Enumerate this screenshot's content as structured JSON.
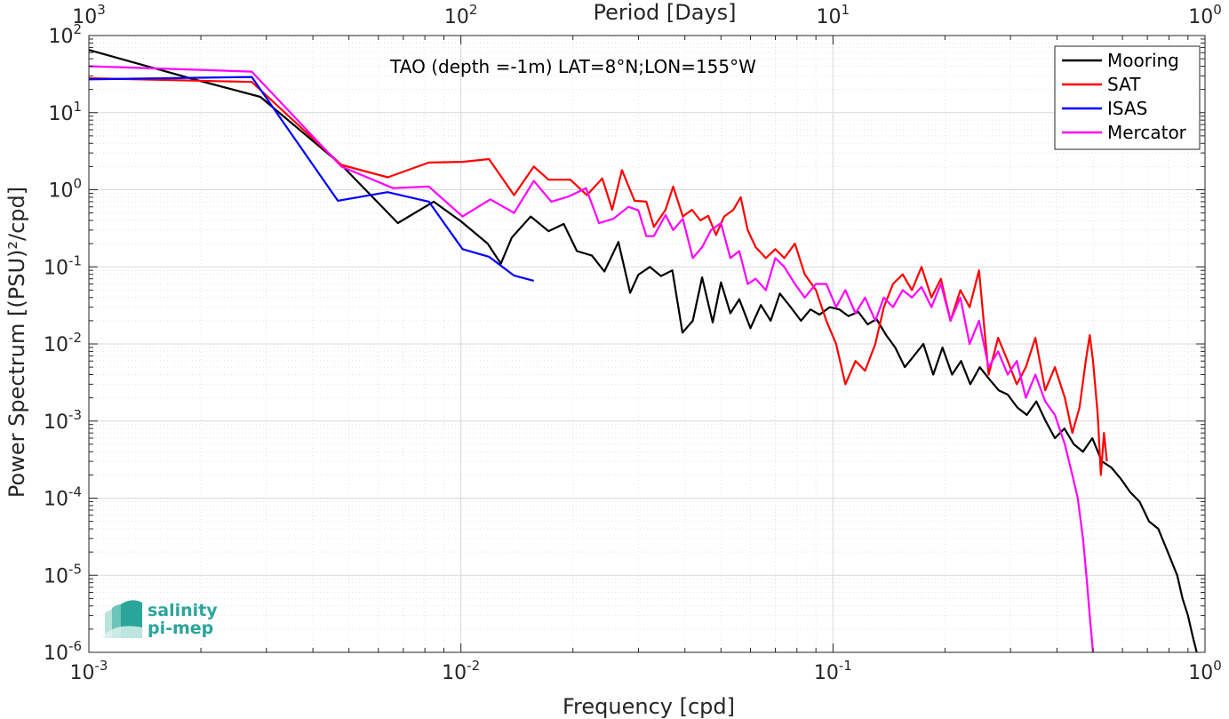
{
  "chart_data": {
    "type": "line",
    "title": "TAO (depth =-1m) LAT=8°N;LON=155°W",
    "xlabel": "Frequency [cpd]",
    "ylabel": "Power Spectrum [(PSU)²/cpd]",
    "top_xlabel": "Period [Days]",
    "xscale": "log",
    "yscale": "log",
    "xlim": [
      0.001,
      1
    ],
    "ylim": [
      1e-06,
      100
    ],
    "grid": true,
    "legend_position": "top-right",
    "x_ticks": [
      {
        "value": 0.001,
        "base": "10",
        "exp": "-3"
      },
      {
        "value": 0.01,
        "base": "10",
        "exp": "-2"
      },
      {
        "value": 0.1,
        "base": "10",
        "exp": "-1"
      },
      {
        "value": 1,
        "base": "10",
        "exp": "0"
      }
    ],
    "top_ticks": [
      {
        "value": 0.001,
        "base": "10",
        "exp": "3"
      },
      {
        "value": 0.01,
        "base": "10",
        "exp": "2"
      },
      {
        "value": 0.1,
        "base": "10",
        "exp": "1"
      },
      {
        "value": 1,
        "base": "10",
        "exp": "0"
      }
    ],
    "y_ticks": [
      {
        "value": 100,
        "base": "10",
        "exp": "2"
      },
      {
        "value": 10,
        "base": "10",
        "exp": "1"
      },
      {
        "value": 1,
        "base": "10",
        "exp": "0"
      },
      {
        "value": 0.1,
        "base": "10",
        "exp": "-1"
      },
      {
        "value": 0.01,
        "base": "10",
        "exp": "-2"
      },
      {
        "value": 0.001,
        "base": "10",
        "exp": "-3"
      },
      {
        "value": 0.0001,
        "base": "10",
        "exp": "-4"
      },
      {
        "value": 1e-05,
        "base": "10",
        "exp": "-5"
      },
      {
        "value": 1e-06,
        "base": "10",
        "exp": "-6"
      }
    ],
    "series": [
      {
        "name": "Mooring",
        "color": "#000000",
        "points": [
          [
            0.001,
            65
          ],
          [
            0.00192,
            27
          ],
          [
            0.00289,
            16
          ],
          [
            0.00477,
            2.1
          ],
          [
            0.00677,
            0.37
          ],
          [
            0.00845,
            0.7
          ],
          [
            0.01,
            0.39
          ],
          [
            0.0118,
            0.2
          ],
          [
            0.0128,
            0.11
          ],
          [
            0.0137,
            0.24
          ],
          [
            0.0154,
            0.45
          ],
          [
            0.0172,
            0.29
          ],
          [
            0.0189,
            0.36
          ],
          [
            0.0205,
            0.16
          ],
          [
            0.0225,
            0.14
          ],
          [
            0.0243,
            0.087
          ],
          [
            0.0265,
            0.21
          ],
          [
            0.0285,
            0.046
          ],
          [
            0.03,
            0.079
          ],
          [
            0.0322,
            0.1
          ],
          [
            0.0345,
            0.076
          ],
          [
            0.037,
            0.09
          ],
          [
            0.0394,
            0.014
          ],
          [
            0.042,
            0.02
          ],
          [
            0.0445,
            0.073
          ],
          [
            0.0475,
            0.019
          ],
          [
            0.05,
            0.063
          ],
          [
            0.053,
            0.025
          ],
          [
            0.056,
            0.038
          ],
          [
            0.06,
            0.016
          ],
          [
            0.064,
            0.032
          ],
          [
            0.068,
            0.02
          ],
          [
            0.072,
            0.045
          ],
          [
            0.077,
            0.03
          ],
          [
            0.082,
            0.02
          ],
          [
            0.087,
            0.028
          ],
          [
            0.092,
            0.024
          ],
          [
            0.098,
            0.03
          ],
          [
            0.104,
            0.028
          ],
          [
            0.11,
            0.023
          ],
          [
            0.117,
            0.026
          ],
          [
            0.124,
            0.018
          ],
          [
            0.131,
            0.021
          ],
          [
            0.139,
            0.013
          ],
          [
            0.147,
            0.009
          ],
          [
            0.156,
            0.005
          ],
          [
            0.165,
            0.007
          ],
          [
            0.175,
            0.01
          ],
          [
            0.186,
            0.004
          ],
          [
            0.197,
            0.009
          ],
          [
            0.209,
            0.004
          ],
          [
            0.221,
            0.006
          ],
          [
            0.234,
            0.003
          ],
          [
            0.248,
            0.005
          ],
          [
            0.263,
            0.0035
          ],
          [
            0.279,
            0.0025
          ],
          [
            0.295,
            0.0022
          ],
          [
            0.313,
            0.0015
          ],
          [
            0.332,
            0.0012
          ],
          [
            0.352,
            0.0018
          ],
          [
            0.373,
            0.001
          ],
          [
            0.395,
            0.0006
          ],
          [
            0.419,
            0.0008
          ],
          [
            0.444,
            0.0005
          ],
          [
            0.47,
            0.0004
          ],
          [
            0.498,
            0.0006
          ],
          [
            0.528,
            0.0003
          ],
          [
            0.56,
            0.00025
          ],
          [
            0.593,
            0.00018
          ],
          [
            0.629,
            0.00012
          ],
          [
            0.667,
            9e-05
          ],
          [
            0.707,
            5e-05
          ],
          [
            0.749,
            4e-05
          ],
          [
            0.794,
            2e-05
          ],
          [
            0.842,
            1e-05
          ],
          [
            0.87,
            5e-06
          ],
          [
            0.9,
            3e-06
          ],
          [
            0.93,
            1.5e-06
          ],
          [
            0.95,
            1e-06
          ]
        ]
      },
      {
        "name": "SAT",
        "color": "#ff0000",
        "points": [
          [
            0.001,
            28
          ],
          [
            0.00274,
            25
          ],
          [
            0.00477,
            2.1
          ],
          [
            0.00636,
            1.45
          ],
          [
            0.0082,
            2.25
          ],
          [
            0.0101,
            2.3
          ],
          [
            0.0119,
            2.5
          ],
          [
            0.0139,
            0.85
          ],
          [
            0.0157,
            2.0
          ],
          [
            0.0172,
            1.35
          ],
          [
            0.0197,
            1.35
          ],
          [
            0.0218,
            0.85
          ],
          [
            0.024,
            1.4
          ],
          [
            0.0255,
            0.55
          ],
          [
            0.0271,
            1.8
          ],
          [
            0.0293,
            0.72
          ],
          [
            0.0315,
            0.7
          ],
          [
            0.033,
            0.33
          ],
          [
            0.0355,
            0.55
          ],
          [
            0.0372,
            1.1
          ],
          [
            0.0395,
            0.45
          ],
          [
            0.0418,
            0.55
          ],
          [
            0.044,
            0.4
          ],
          [
            0.0462,
            0.46
          ],
          [
            0.0485,
            0.26
          ],
          [
            0.051,
            0.45
          ],
          [
            0.054,
            0.55
          ],
          [
            0.0565,
            0.8
          ],
          [
            0.059,
            0.3
          ],
          [
            0.062,
            0.18
          ],
          [
            0.066,
            0.13
          ],
          [
            0.07,
            0.17
          ],
          [
            0.074,
            0.13
          ],
          [
            0.079,
            0.2
          ],
          [
            0.084,
            0.08
          ],
          [
            0.09,
            0.05
          ],
          [
            0.096,
            0.02
          ],
          [
            0.102,
            0.01
          ],
          [
            0.108,
            0.003
          ],
          [
            0.115,
            0.006
          ],
          [
            0.122,
            0.0045
          ],
          [
            0.13,
            0.01
          ],
          [
            0.137,
            0.03
          ],
          [
            0.145,
            0.06
          ],
          [
            0.154,
            0.08
          ],
          [
            0.163,
            0.05
          ],
          [
            0.173,
            0.1
          ],
          [
            0.184,
            0.04
          ],
          [
            0.195,
            0.07
          ],
          [
            0.207,
            0.02
          ],
          [
            0.22,
            0.05
          ],
          [
            0.233,
            0.03
          ],
          [
            0.247,
            0.09
          ],
          [
            0.262,
            0.004
          ],
          [
            0.278,
            0.012
          ],
          [
            0.295,
            0.006
          ],
          [
            0.312,
            0.003
          ],
          [
            0.33,
            0.005
          ],
          [
            0.35,
            0.012
          ],
          [
            0.372,
            0.0025
          ],
          [
            0.395,
            0.005
          ],
          [
            0.42,
            0.002
          ],
          [
            0.44,
            0.0007
          ],
          [
            0.46,
            0.0015
          ],
          [
            0.478,
            0.006
          ],
          [
            0.49,
            0.013
          ],
          [
            0.5,
            0.006
          ],
          [
            0.515,
            0.0012
          ],
          [
            0.525,
            0.0002
          ],
          [
            0.535,
            0.0007
          ],
          [
            0.545,
            0.0003
          ]
        ]
      },
      {
        "name": "ISAS",
        "color": "#0000ff",
        "points": [
          [
            0.001,
            27
          ],
          [
            0.00274,
            29
          ],
          [
            0.00467,
            0.72
          ],
          [
            0.00635,
            0.93
          ],
          [
            0.0082,
            0.7
          ],
          [
            0.0101,
            0.17
          ],
          [
            0.0119,
            0.135
          ],
          [
            0.0139,
            0.077
          ],
          [
            0.0157,
            0.066
          ]
        ]
      },
      {
        "name": "Mercator",
        "color": "#ff00ff",
        "points": [
          [
            0.001,
            40
          ],
          [
            0.00274,
            34
          ],
          [
            0.00477,
            2.0
          ],
          [
            0.00657,
            1.05
          ],
          [
            0.0082,
            1.1
          ],
          [
            0.0101,
            0.45
          ],
          [
            0.012,
            0.75
          ],
          [
            0.0139,
            0.5
          ],
          [
            0.0157,
            1.3
          ],
          [
            0.0175,
            0.7
          ],
          [
            0.0195,
            0.82
          ],
          [
            0.0217,
            1.05
          ],
          [
            0.0235,
            0.37
          ],
          [
            0.0257,
            0.42
          ],
          [
            0.0282,
            0.6
          ],
          [
            0.03,
            0.54
          ],
          [
            0.0315,
            0.25
          ],
          [
            0.033,
            0.25
          ],
          [
            0.0355,
            0.47
          ],
          [
            0.0372,
            0.3
          ],
          [
            0.0395,
            0.42
          ],
          [
            0.042,
            0.13
          ],
          [
            0.0445,
            0.18
          ],
          [
            0.047,
            0.3
          ],
          [
            0.05,
            0.37
          ],
          [
            0.053,
            0.13
          ],
          [
            0.056,
            0.16
          ],
          [
            0.059,
            0.06
          ],
          [
            0.062,
            0.07
          ],
          [
            0.066,
            0.05
          ],
          [
            0.07,
            0.13
          ],
          [
            0.074,
            0.1
          ],
          [
            0.079,
            0.06
          ],
          [
            0.084,
            0.04
          ],
          [
            0.09,
            0.06
          ],
          [
            0.096,
            0.06
          ],
          [
            0.102,
            0.03
          ],
          [
            0.108,
            0.05
          ],
          [
            0.115,
            0.025
          ],
          [
            0.122,
            0.04
          ],
          [
            0.13,
            0.02
          ],
          [
            0.137,
            0.04
          ],
          [
            0.145,
            0.03
          ],
          [
            0.154,
            0.05
          ],
          [
            0.163,
            0.04
          ],
          [
            0.173,
            0.055
          ],
          [
            0.184,
            0.03
          ],
          [
            0.195,
            0.06
          ],
          [
            0.207,
            0.02
          ],
          [
            0.22,
            0.04
          ],
          [
            0.233,
            0.01
          ],
          [
            0.247,
            0.02
          ],
          [
            0.262,
            0.005
          ],
          [
            0.278,
            0.008
          ],
          [
            0.295,
            0.004
          ],
          [
            0.312,
            0.006
          ],
          [
            0.33,
            0.002
          ],
          [
            0.35,
            0.004
          ],
          [
            0.372,
            0.0018
          ],
          [
            0.395,
            0.0012
          ],
          [
            0.42,
            0.0005
          ],
          [
            0.44,
            0.0002
          ],
          [
            0.455,
            0.0001
          ],
          [
            0.47,
            3e-05
          ],
          [
            0.48,
            1e-05
          ],
          [
            0.49,
            3e-06
          ],
          [
            0.5,
            1e-06
          ]
        ]
      }
    ]
  },
  "logo": {
    "line1": "salinity",
    "line2": "pi-mep",
    "color": "#2aa59a"
  }
}
